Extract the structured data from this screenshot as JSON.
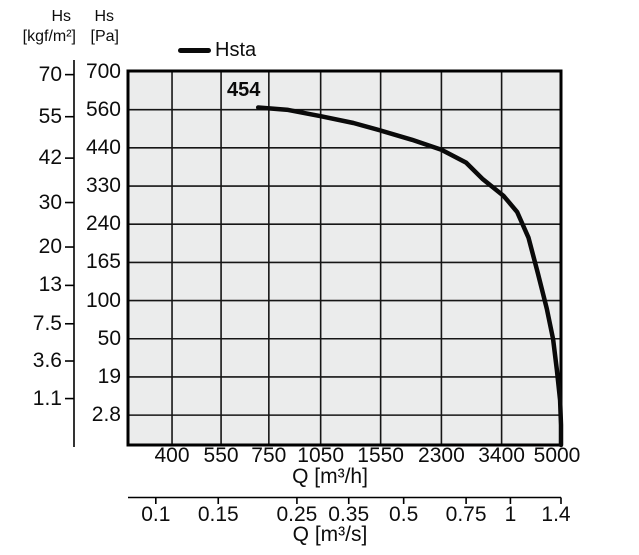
{
  "header": {
    "left_axis_title": "Hs",
    "left_axis_unit": "[kgf/m²]",
    "right_axis_title": "Hs",
    "right_axis_unit": "[Pa]"
  },
  "legend": {
    "series_label": "Hsta"
  },
  "annotation": {
    "curve_start_value": "454"
  },
  "colors": {
    "plot_background": "#ebecec",
    "grid": "#161616",
    "curve": "#0a0a0a",
    "text": "#0d0d0d"
  },
  "chart_data": {
    "type": "line",
    "title": "",
    "grid": true,
    "legend_position": "top-left",
    "x_scale": "log",
    "y_scale": "sqrt",
    "x_axis": {
      "label": "Q [m³/h]",
      "tick_values": [
        400,
        550,
        750,
        1050,
        1550,
        2300,
        3400,
        5000
      ],
      "tick_labels": [
        "400",
        "550",
        "750",
        "1050",
        "1550",
        "2300",
        "3400",
        "5000"
      ],
      "range": [
        300,
        5000
      ]
    },
    "x_axis_secondary": {
      "label": "Q [m³/s]",
      "tick_values": [
        0.1,
        0.15,
        0.25,
        0.35,
        0.5,
        0.75,
        1,
        1.4
      ],
      "tick_labels": [
        "0.1",
        "0.15",
        "0.25",
        "0.35",
        "0.5",
        "0.75",
        "1",
        "1.4"
      ],
      "unit_conversion_to_m3h": 3600
    },
    "y_axis": {
      "label": "Hs [Pa]",
      "tick_values": [
        700,
        560,
        440,
        330,
        240,
        165,
        100,
        50,
        19,
        2.8
      ],
      "tick_labels": [
        "700",
        "560",
        "440",
        "330",
        "240",
        "165",
        "100",
        "50",
        "19",
        "2.8"
      ],
      "range": [
        0,
        700
      ]
    },
    "y_axis_secondary": {
      "label": "Hs [kgf/m²]",
      "tick_values": [
        70,
        55,
        42,
        30,
        20,
        13,
        7.5,
        3.6,
        1.1
      ],
      "tick_labels": [
        "70",
        "55",
        "42",
        "30",
        "20",
        "13",
        "7.5",
        "3.6",
        "1.1"
      ],
      "kgf_to_pa": 9.80665
    },
    "series": [
      {
        "name": "Hsta",
        "start_label": "454",
        "points_q_m3h_hs_pa": [
          [
            700,
            570
          ],
          [
            850,
            562
          ],
          [
            1050,
            541
          ],
          [
            1300,
            519
          ],
          [
            1550,
            495
          ],
          [
            1900,
            466
          ],
          [
            2300,
            436
          ],
          [
            2700,
            399
          ],
          [
            3000,
            355
          ],
          [
            3440,
            311
          ],
          [
            3760,
            272
          ],
          [
            4050,
            215
          ],
          [
            4300,
            148
          ],
          [
            4560,
            93
          ],
          [
            4750,
            56
          ],
          [
            4870,
            28
          ],
          [
            4970,
            10
          ],
          [
            5000,
            2
          ],
          [
            5000,
            0
          ]
        ]
      }
    ]
  }
}
